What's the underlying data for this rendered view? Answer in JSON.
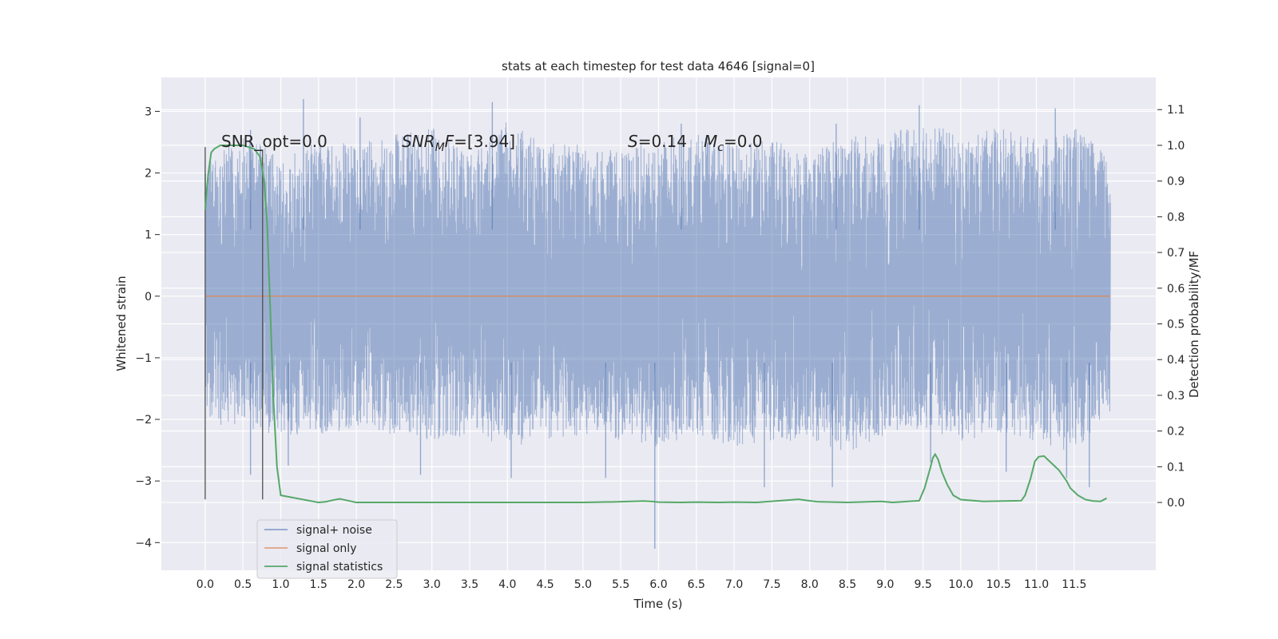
{
  "chart_data": {
    "type": "line",
    "title": "stats at each timestep for test data 4646 [signal=0]",
    "xlabel": "Time (s)",
    "ylabel": "Whitened strain",
    "y2label": "Detection probability/MF",
    "xlim": [
      -0.58,
      12.58
    ],
    "ylim": [
      -4.45,
      3.55
    ],
    "y2lim": [
      -0.19,
      1.19
    ],
    "x_ticks": [
      0.0,
      0.5,
      1.0,
      1.5,
      2.0,
      2.5,
      3.0,
      3.5,
      4.0,
      4.5,
      5.0,
      5.5,
      6.0,
      6.5,
      7.0,
      7.5,
      8.0,
      8.5,
      9.0,
      9.5,
      10.0,
      10.5,
      11.0,
      11.5
    ],
    "x_tick_labels": [
      "0.0",
      "0.5",
      "1.0",
      "1.5",
      "2.0",
      "2.5",
      "3.0",
      "3.5",
      "4.0",
      "4.5",
      "5.0",
      "5.5",
      "6.0",
      "6.5",
      "7.0",
      "7.5",
      "8.0",
      "8.5",
      "9.0",
      "9.5",
      "10.0",
      "10.5",
      "11.0",
      "11.5"
    ],
    "y_ticks": [
      -4,
      -3,
      -2,
      -1,
      0,
      1,
      2,
      3
    ],
    "y_tick_labels": [
      "−4",
      "−3",
      "−2",
      "−1",
      "0",
      "1",
      "2",
      "3"
    ],
    "y2_ticks": [
      0.0,
      0.1,
      0.2,
      0.3,
      0.4,
      0.5,
      0.6,
      0.7,
      0.8,
      0.9,
      1.0,
      1.1
    ],
    "y2_tick_labels": [
      "0.0",
      "0.1",
      "0.2",
      "0.3",
      "0.4",
      "0.5",
      "0.6",
      "0.7",
      "0.8",
      "0.9",
      "1.0",
      "1.1"
    ],
    "grid": true,
    "legend_position": "lower-left",
    "annotations": {
      "snr_opt": "SNR_opt=0.0",
      "snr_mf_italic": "SNR",
      "snr_mf_sub": "M",
      "snr_mf_rest_italic": "F",
      "snr_mf_value": "=[3.94]",
      "s_italic": "S",
      "s_value": "=0.14",
      "mc_italic": "M",
      "mc_sub": "c",
      "mc_value": "=0.0"
    },
    "noise_envelope": {
      "x": [
        0.0,
        0.5,
        1.0,
        1.5,
        2.0,
        2.5,
        3.0,
        3.5,
        4.0,
        4.5,
        5.0,
        5.5,
        6.0,
        6.5,
        7.0,
        7.5,
        8.0,
        8.5,
        9.0,
        9.5,
        10.0,
        10.5,
        11.0,
        11.5,
        11.98
      ],
      "upper": [
        2.2,
        2.7,
        2.3,
        2.6,
        2.5,
        2.7,
        2.8,
        2.4,
        2.9,
        2.6,
        2.5,
        2.4,
        2.6,
        2.7,
        2.5,
        2.6,
        2.4,
        2.7,
        2.6,
        3.0,
        2.6,
        2.8,
        2.6,
        2.8,
        2.3
      ],
      "lower": [
        -2.1,
        -2.2,
        -2.3,
        -2.3,
        -2.2,
        -2.3,
        -2.4,
        -2.3,
        -2.5,
        -2.4,
        -2.3,
        -2.4,
        -2.5,
        -2.3,
        -2.5,
        -2.4,
        -2.4,
        -2.6,
        -2.3,
        -2.2,
        -2.4,
        -2.3,
        -2.4,
        -2.6,
        -1.9
      ]
    },
    "noise_extremes": [
      {
        "t": 1.3,
        "y": 3.2
      },
      {
        "t": 3.8,
        "y": 3.15
      },
      {
        "t": 9.45,
        "y": 3.1
      },
      {
        "t": 11.25,
        "y": 3.05
      },
      {
        "t": 0.6,
        "y": 2.7
      },
      {
        "t": 2.05,
        "y": 2.9
      },
      {
        "t": 6.3,
        "y": 2.8
      },
      {
        "t": 8.35,
        "y": 2.8
      },
      {
        "t": 5.95,
        "y": -4.1
      },
      {
        "t": 7.4,
        "y": -3.1
      },
      {
        "t": 8.3,
        "y": -3.1
      },
      {
        "t": 11.7,
        "y": -3.1
      },
      {
        "t": 0.6,
        "y": -2.9
      },
      {
        "t": 2.85,
        "y": -2.9
      },
      {
        "t": 4.05,
        "y": -2.95
      },
      {
        "t": 5.3,
        "y": -2.95
      },
      {
        "t": 9.6,
        "y": -2.7
      },
      {
        "t": 10.6,
        "y": -2.85
      },
      {
        "t": 11.4,
        "y": -2.95
      },
      {
        "t": 1.1,
        "y": -2.75
      }
    ],
    "series": [
      {
        "name": "signal+ noise",
        "color": "#4c72b0",
        "style": "dense noise trace (alpha 0.5)"
      },
      {
        "name": "signal only",
        "color": "#dd8452",
        "x": [
          0.0,
          11.98
        ],
        "y": [
          0.0,
          0.0
        ]
      },
      {
        "name": "signal statistics",
        "color": "#55a868",
        "axis": "right",
        "x": [
          0.0,
          0.04,
          0.08,
          0.12,
          0.2,
          0.3,
          0.5,
          0.65,
          0.72,
          0.75,
          0.78,
          0.82,
          0.86,
          0.9,
          0.95,
          1.0,
          1.5,
          1.6,
          1.7,
          1.78,
          1.85,
          2.0,
          3.0,
          4.0,
          5.0,
          5.5,
          5.8,
          5.9,
          6.0,
          6.3,
          6.5,
          6.8,
          7.0,
          7.3,
          7.8,
          7.85,
          7.95,
          8.1,
          8.5,
          8.8,
          8.95,
          9.1,
          9.45,
          9.52,
          9.6,
          9.63,
          9.66,
          9.7,
          9.75,
          9.82,
          9.9,
          10.0,
          10.3,
          10.8,
          10.85,
          10.92,
          10.98,
          11.03,
          11.1,
          11.2,
          11.3,
          11.4,
          11.45,
          11.55,
          11.65,
          11.75,
          11.85,
          11.93
        ],
        "y": [
          0.82,
          0.92,
          0.98,
          0.99,
          1.0,
          1.0,
          1.0,
          0.99,
          0.97,
          0.94,
          0.9,
          0.78,
          0.55,
          0.3,
          0.1,
          0.02,
          0.0,
          0.002,
          0.007,
          0.01,
          0.007,
          0.0,
          0.0,
          0.0,
          0.0,
          0.002,
          0.004,
          0.003,
          0.001,
          0.0,
          0.001,
          0.0,
          0.001,
          0.0,
          0.008,
          0.009,
          0.006,
          0.002,
          0.0,
          0.002,
          0.003,
          0.0,
          0.005,
          0.04,
          0.1,
          0.125,
          0.135,
          0.12,
          0.085,
          0.05,
          0.02,
          0.008,
          0.003,
          0.005,
          0.02,
          0.065,
          0.115,
          0.128,
          0.13,
          0.11,
          0.09,
          0.06,
          0.04,
          0.02,
          0.008,
          0.004,
          0.003,
          0.012
        ]
      }
    ],
    "vertical_lines": [
      {
        "x": 0.0,
        "ymin": -3.3,
        "ymax": 2.42,
        "color": "#505050"
      },
      {
        "x": 0.76,
        "ymin": -3.3,
        "ymax": 2.38,
        "color": "#505050"
      }
    ],
    "colors": {
      "plot_background": "#eaeaf2",
      "grid": "#ffffff",
      "noise": "#4c72b0",
      "signal": "#dd8452",
      "statistics": "#55a868",
      "vlines": "#505050"
    }
  }
}
